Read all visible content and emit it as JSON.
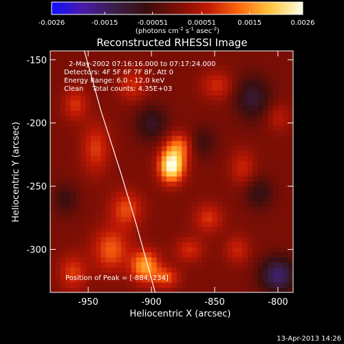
{
  "chart_data": {
    "type": "heatmap",
    "title": "Reconstructed RHESSI Image",
    "xlabel": "Heliocentric X (arcsec)",
    "ylabel": "Heliocentric Y (arcsec)",
    "xlim": [
      -980,
      -788
    ],
    "ylim": [
      -334,
      -143
    ],
    "x_ticks": [
      -950,
      -900,
      -850,
      -800
    ],
    "x_tick_labels": [
      "-950",
      "-900",
      "-850",
      "-800"
    ],
    "y_ticks": [
      -150,
      -200,
      -250,
      -300
    ],
    "y_tick_labels": [
      "-150",
      "-200",
      "-250",
      "-300"
    ],
    "colorbar": {
      "min": -0.0026,
      "max": 0.0026,
      "ticks": [
        -0.0026,
        -0.0015,
        -0.00051,
        0.00051,
        0.0015,
        0.0026
      ],
      "tick_labels": [
        "-0.0026",
        "-0.0015",
        "-0.00051",
        "0.00051",
        "0.0015",
        "0.0026"
      ],
      "label_main": "(photons cm",
      "label_exp1": "-2",
      "label_mid": " s",
      "label_exp2": "-1",
      "label_mid2": " asec",
      "label_exp3": "-2",
      "label_end": ")",
      "colormap": [
        "#1010ff",
        "#4a1aa8",
        "#3a1f4a",
        "#3a0e0e",
        "#7a0e05",
        "#c21a05",
        "#ff6a10",
        "#ffc840",
        "#ffffe8"
      ]
    },
    "annotations": [
      "2-May-2002 07:16:16.000 to 07:17:24.000",
      "Detectors: 4F 5F 6F 7F 8F, Att 0",
      "Energy Range: 6.0 - 12.0 keV",
      "Clean    Total counts: 4.35E+03"
    ],
    "peak_label": "Position of Peak = [-884,-234]",
    "peak": {
      "x": -884,
      "y": -234
    },
    "limb_curve": [
      [
        -953,
        -143
      ],
      [
        -940,
        -190
      ],
      [
        -924,
        -240
      ],
      [
        -912,
        -280
      ],
      [
        -897,
        -334
      ]
    ],
    "features": [
      {
        "x": -884,
        "y": -234,
        "amp": 1.0,
        "sx": 7,
        "sy": 9
      },
      {
        "x": -878,
        "y": -218,
        "amp": 0.45,
        "sx": 8,
        "sy": 8
      },
      {
        "x": -905,
        "y": -313,
        "amp": 0.65,
        "sx": 8,
        "sy": 9
      },
      {
        "x": -888,
        "y": -322,
        "amp": 0.4,
        "sx": 7,
        "sy": 6
      },
      {
        "x": -932,
        "y": -300,
        "amp": 0.45,
        "sx": 10,
        "sy": 12
      },
      {
        "x": -920,
        "y": -268,
        "amp": 0.4,
        "sx": 9,
        "sy": 10
      },
      {
        "x": -944,
        "y": -220,
        "amp": 0.35,
        "sx": 8,
        "sy": 14
      },
      {
        "x": -960,
        "y": -185,
        "amp": 0.32,
        "sx": 7,
        "sy": 9
      },
      {
        "x": -962,
        "y": -318,
        "amp": 0.35,
        "sx": 8,
        "sy": 10
      },
      {
        "x": -848,
        "y": -170,
        "amp": 0.3,
        "sx": 9,
        "sy": 8
      },
      {
        "x": -828,
        "y": -235,
        "amp": 0.28,
        "sx": 7,
        "sy": 10
      },
      {
        "x": -855,
        "y": -275,
        "amp": 0.33,
        "sx": 8,
        "sy": 8
      },
      {
        "x": -832,
        "y": -300,
        "amp": 0.28,
        "sx": 7,
        "sy": 8
      },
      {
        "x": -800,
        "y": -195,
        "amp": 0.22,
        "sx": 7,
        "sy": 8
      },
      {
        "x": -870,
        "y": -300,
        "amp": 0.3,
        "sx": 8,
        "sy": 7
      },
      {
        "x": -915,
        "y": -170,
        "amp": 0.3,
        "sx": 8,
        "sy": 9
      },
      {
        "x": -900,
        "y": -200,
        "amp": -0.35,
        "sx": 9,
        "sy": 10
      },
      {
        "x": -820,
        "y": -180,
        "amp": -0.4,
        "sx": 10,
        "sy": 12
      },
      {
        "x": -800,
        "y": -320,
        "amp": -0.6,
        "sx": 10,
        "sy": 10
      },
      {
        "x": -815,
        "y": -255,
        "amp": -0.3,
        "sx": 8,
        "sy": 9
      },
      {
        "x": -968,
        "y": -260,
        "amp": -0.25,
        "sx": 7,
        "sy": 9
      },
      {
        "x": -860,
        "y": -215,
        "amp": -0.25,
        "sx": 8,
        "sy": 9
      }
    ]
  },
  "footer": {
    "timestamp": "13-Apr-2013 14:26"
  }
}
